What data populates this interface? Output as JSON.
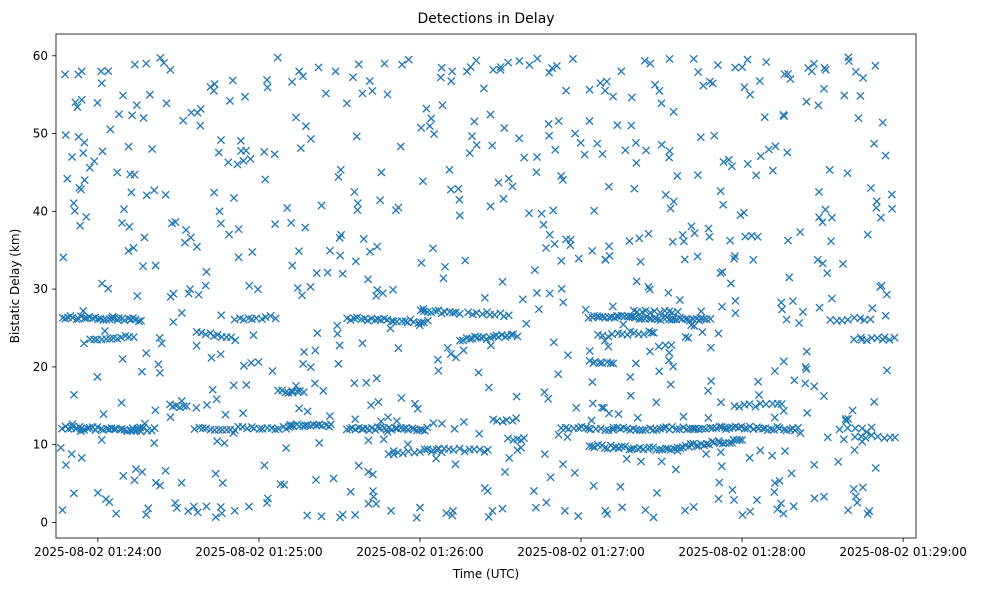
{
  "chart_data": {
    "type": "scatter",
    "title": "Detections in Delay",
    "xlabel": "Time (UTC)",
    "ylabel": "Bistatic Delay (km)",
    "marker": "x",
    "color": "#1f77b4",
    "grid": false,
    "x_unit": "minutes since 2025-08-02 01:24:00",
    "xlim": [
      -0.26,
      5.08
    ],
    "ylim": [
      -2.0,
      62.8
    ],
    "x_ticks": [
      {
        "value": 0,
        "label": "2025-08-02 01:24:00"
      },
      {
        "value": 1,
        "label": "2025-08-02 01:25:00"
      },
      {
        "value": 2,
        "label": "2025-08-02 01:26:00"
      },
      {
        "value": 3,
        "label": "2025-08-02 01:27:00"
      },
      {
        "value": 4,
        "label": "2025-08-02 01:28:00"
      },
      {
        "value": 5,
        "label": "2025-08-02 01:29:00"
      }
    ],
    "y_ticks": [
      {
        "value": 0,
        "label": "0"
      },
      {
        "value": 10,
        "label": "10"
      },
      {
        "value": 20,
        "label": "20"
      },
      {
        "value": 30,
        "label": "30"
      },
      {
        "value": 40,
        "label": "40"
      },
      {
        "value": 50,
        "label": "50"
      },
      {
        "value": 60,
        "label": "60"
      }
    ],
    "tracks": [
      {
        "x0": -0.22,
        "x1": 0.27,
        "y0": 26.4,
        "y1": 26.0,
        "n": 30
      },
      {
        "x0": -0.22,
        "x1": 0.27,
        "y0": 12.2,
        "y1": 11.9,
        "n": 30
      },
      {
        "x0": -0.05,
        "x1": 0.22,
        "y0": 23.6,
        "y1": 23.9,
        "n": 12
      },
      {
        "x0": 0.2,
        "x1": 0.35,
        "y0": 12.0,
        "y1": 12.0,
        "n": 8
      },
      {
        "x0": 0.45,
        "x1": 0.55,
        "y0": 15.0,
        "y1": 15.0,
        "n": 6
      },
      {
        "x0": 0.6,
        "x1": 1.2,
        "y0": 12.0,
        "y1": 12.2,
        "n": 25
      },
      {
        "x0": 0.62,
        "x1": 0.85,
        "y0": 24.5,
        "y1": 23.6,
        "n": 10
      },
      {
        "x0": 0.85,
        "x1": 1.1,
        "y0": 26.2,
        "y1": 26.4,
        "n": 10
      },
      {
        "x0": 1.12,
        "x1": 1.28,
        "y0": 16.8,
        "y1": 16.8,
        "n": 8
      },
      {
        "x0": 1.2,
        "x1": 1.45,
        "y0": 12.4,
        "y1": 12.4,
        "n": 15
      },
      {
        "x0": 1.55,
        "x1": 2.05,
        "y0": 12.1,
        "y1": 12.0,
        "n": 30
      },
      {
        "x0": 1.55,
        "x1": 2.05,
        "y0": 26.2,
        "y1": 25.8,
        "n": 25
      },
      {
        "x0": 1.8,
        "x1": 2.1,
        "y0": 9.0,
        "y1": 9.3,
        "n": 10
      },
      {
        "x0": 2.0,
        "x1": 2.25,
        "y0": 27.2,
        "y1": 27.0,
        "n": 12
      },
      {
        "x0": 2.05,
        "x1": 2.4,
        "y0": 9.5,
        "y1": 9.2,
        "n": 12
      },
      {
        "x0": 2.25,
        "x1": 2.6,
        "y0": 23.6,
        "y1": 24.0,
        "n": 20
      },
      {
        "x0": 2.3,
        "x1": 2.55,
        "y0": 27.0,
        "y1": 26.6,
        "n": 10
      },
      {
        "x0": 2.45,
        "x1": 2.6,
        "y0": 13.2,
        "y1": 13.2,
        "n": 6
      },
      {
        "x0": 2.55,
        "x1": 2.65,
        "y0": 10.8,
        "y1": 10.8,
        "n": 5
      },
      {
        "x0": 2.9,
        "x1": 3.2,
        "y0": 12.1,
        "y1": 12.0,
        "n": 12
      },
      {
        "x0": 3.05,
        "x1": 3.2,
        "y0": 20.6,
        "y1": 20.4,
        "n": 8
      },
      {
        "x0": 3.05,
        "x1": 3.6,
        "y0": 9.8,
        "y1": 9.3,
        "n": 30
      },
      {
        "x0": 3.05,
        "x1": 3.8,
        "y0": 26.5,
        "y1": 26.0,
        "n": 45
      },
      {
        "x0": 3.1,
        "x1": 3.45,
        "y0": 24.0,
        "y1": 24.5,
        "n": 12
      },
      {
        "x0": 3.2,
        "x1": 3.9,
        "y0": 12.0,
        "y1": 12.2,
        "n": 35
      },
      {
        "x0": 3.35,
        "x1": 3.6,
        "y0": 27.2,
        "y1": 27.0,
        "n": 10
      },
      {
        "x0": 3.6,
        "x1": 4.0,
        "y0": 9.7,
        "y1": 10.6,
        "n": 25
      },
      {
        "x0": 3.9,
        "x1": 4.35,
        "y0": 12.2,
        "y1": 12.0,
        "n": 25
      },
      {
        "x0": 3.95,
        "x1": 4.25,
        "y0": 15.1,
        "y1": 15.1,
        "n": 10
      },
      {
        "x0": 4.55,
        "x1": 4.8,
        "y0": 26.1,
        "y1": 26.1,
        "n": 8
      },
      {
        "x0": 4.7,
        "x1": 4.95,
        "y0": 23.6,
        "y1": 23.6,
        "n": 8
      },
      {
        "x0": 4.7,
        "x1": 4.95,
        "y0": 11.0,
        "y1": 11.0,
        "n": 8
      },
      {
        "x0": 4.6,
        "x1": 4.8,
        "y0": 12.1,
        "y1": 12.1,
        "n": 5
      }
    ],
    "extra_points": [
      [
        -0.22,
        1.6
      ],
      [
        -0.23,
        9.6
      ],
      [
        -0.19,
        44.2
      ],
      [
        -0.2,
        49.8
      ],
      [
        -0.16,
        47.0
      ],
      [
        -0.14,
        54.0
      ],
      [
        -0.1,
        58.0
      ],
      [
        -0.05,
        45.6
      ],
      [
        0.02,
        58.0
      ],
      [
        0.12,
        45.0
      ],
      [
        0.15,
        38.5
      ],
      [
        0.3,
        59.0
      ],
      [
        0.35,
        42.7
      ],
      [
        0.45,
        58.2
      ],
      [
        0.58,
        52.7
      ],
      [
        0.72,
        55.5
      ],
      [
        0.82,
        54.2
      ],
      [
        0.92,
        47.8
      ],
      [
        1.05,
        56.9
      ],
      [
        1.25,
        58.0
      ],
      [
        1.37,
        58.5
      ],
      [
        1.62,
        58.9
      ],
      [
        1.78,
        59.0
      ],
      [
        1.93,
        59.5
      ],
      [
        2.04,
        53.2
      ],
      [
        2.2,
        58.0
      ],
      [
        2.35,
        59.4
      ],
      [
        2.5,
        58.2
      ],
      [
        2.68,
        58.8
      ],
      [
        2.85,
        58.7
      ],
      [
        2.95,
        59.6
      ],
      [
        3.12,
        56.5
      ],
      [
        3.25,
        58.0
      ],
      [
        3.43,
        59.0
      ],
      [
        3.55,
        59.6
      ],
      [
        3.7,
        59.6
      ],
      [
        3.85,
        58.8
      ],
      [
        4.05,
        55.0
      ],
      [
        4.15,
        59.2
      ],
      [
        4.3,
        57.0
      ],
      [
        4.4,
        54.1
      ],
      [
        4.52,
        58.2
      ],
      [
        4.66,
        59.8
      ],
      [
        4.82,
        48.7
      ],
      [
        -0.1,
        8.3
      ],
      [
        0.05,
        3.0
      ],
      [
        0.3,
        1.0
      ],
      [
        0.48,
        2.5
      ],
      [
        0.62,
        1.3
      ],
      [
        0.85,
        1.5
      ],
      [
        1.05,
        2.5
      ],
      [
        1.3,
        0.9
      ],
      [
        1.52,
        1.0
      ],
      [
        1.82,
        1.5
      ],
      [
        1.98,
        0.6
      ],
      [
        2.2,
        0.9
      ],
      [
        2.45,
        1.5
      ],
      [
        2.72,
        1.9
      ],
      [
        2.9,
        1.5
      ],
      [
        3.15,
        1.5
      ],
      [
        3.4,
        1.6
      ],
      [
        3.7,
        2.0
      ],
      [
        3.95,
        2.9
      ],
      [
        4.05,
        1.4
      ],
      [
        4.2,
        3.9
      ],
      [
        4.45,
        3.1
      ],
      [
        4.75,
        4.5
      ],
      [
        4.78,
        1.1
      ],
      [
        4.83,
        7.0
      ],
      [
        4.82,
        15.5
      ],
      [
        4.78,
        37.0
      ],
      [
        4.8,
        43.0
      ]
    ]
  }
}
